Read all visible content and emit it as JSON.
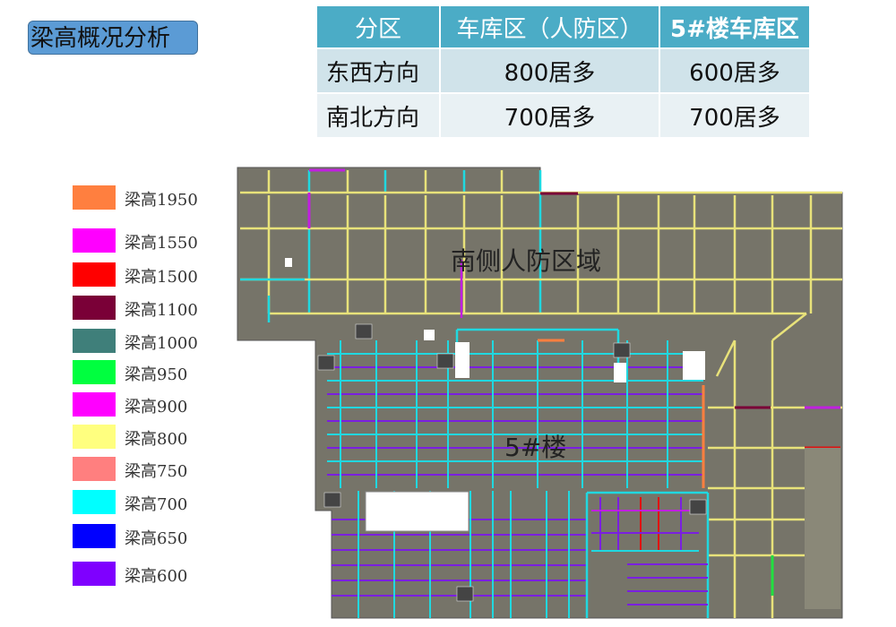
{
  "title": "梁高概况分析",
  "table": {
    "headers": [
      "分区",
      "车库区（人防区）",
      "5#楼车库区"
    ],
    "rows": [
      [
        "东西方向",
        "800居多",
        "600居多"
      ],
      [
        "南北方向",
        "700居多",
        "700居多"
      ]
    ]
  },
  "legend": [
    {
      "label": "梁高1950",
      "color": "#ff7f3f"
    },
    {
      "label": "梁高1550",
      "color": "#ff00ff"
    },
    {
      "label": "梁高1500",
      "color": "#ff0000"
    },
    {
      "label": "梁高1100",
      "color": "#7a0037"
    },
    {
      "label": "梁高1000",
      "color": "#3f7f7a"
    },
    {
      "label": "梁高950",
      "color": "#00ff3f"
    },
    {
      "label": "梁高900",
      "color": "#ff00ff"
    },
    {
      "label": "梁高800",
      "color": "#ffff7f"
    },
    {
      "label": "梁高750",
      "color": "#ff7f7f"
    },
    {
      "label": "梁高700",
      "color": "#00ffff"
    },
    {
      "label": "梁高650",
      "color": "#0000ff"
    },
    {
      "label": "梁高600",
      "color": "#7f00ff"
    }
  ],
  "plan": {
    "label_south": "南侧人防区域",
    "label_building": "5#楼",
    "slab_color": "#767469"
  }
}
